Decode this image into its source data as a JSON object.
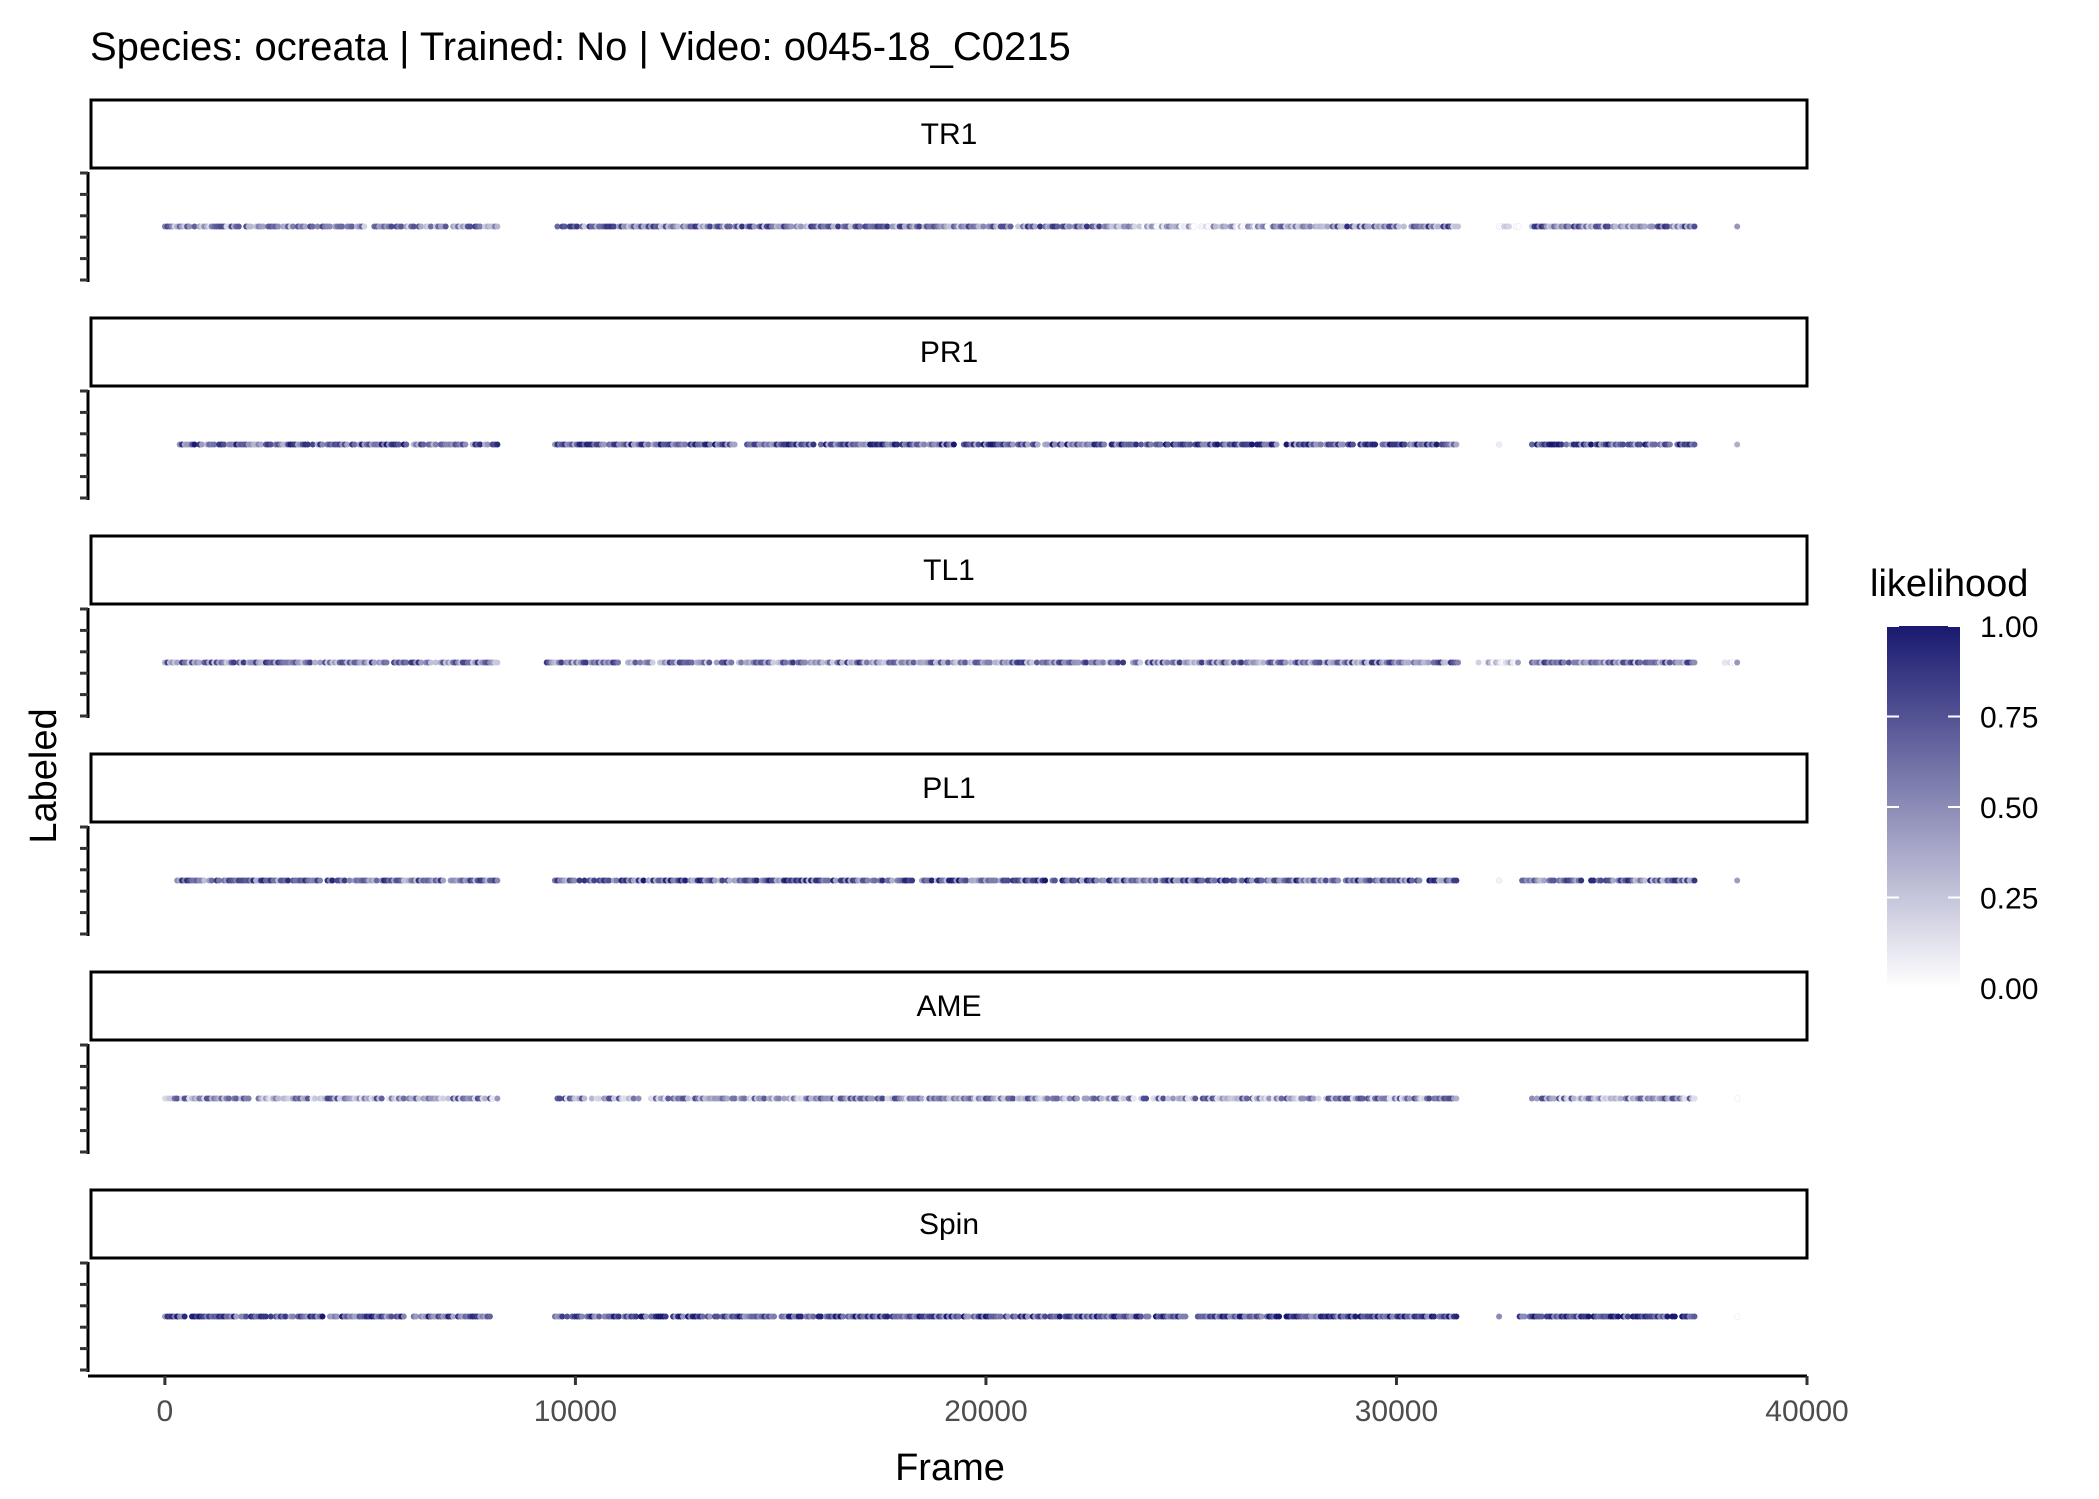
{
  "chart_data": {
    "type": "scatter",
    "title": "Species: ocreata | Trained: No | Video: o045-18_C0215",
    "xlabel": "Frame",
    "ylabel": "Labeled",
    "xlim": [
      -1800,
      40000
    ],
    "x_ticks": [
      0,
      10000,
      20000,
      30000,
      40000
    ],
    "facets": [
      "TR1",
      "PR1",
      "TL1",
      "PL1",
      "AME",
      "Spin"
    ],
    "y_value": 1,
    "color_scale": {
      "name": "likelihood",
      "low_color": "#ffffff",
      "high_color": "#191970",
      "limits": [
        0,
        1
      ],
      "tick_values": [
        0,
        0.25,
        0.5,
        0.75,
        1
      ],
      "tick_labels": [
        "0.00",
        "0.25",
        "0.50",
        "0.75",
        "1.00"
      ]
    },
    "segments": {
      "TR1": [
        {
          "from": 0,
          "to": 8100,
          "likelihood": 0.5
        },
        {
          "from": 9500,
          "to": 23500,
          "likelihood": 0.55
        },
        {
          "from": 23500,
          "to": 27000,
          "likelihood": 0.25
        },
        {
          "from": 27000,
          "to": 31500,
          "likelihood": 0.55
        },
        {
          "from": 32500,
          "to": 33000,
          "likelihood": 0.1
        },
        {
          "from": 33300,
          "to": 37300,
          "likelihood": 0.55
        },
        {
          "from": 38300,
          "to": 38300,
          "likelihood": 0.2
        }
      ],
      "PR1": [
        {
          "from": 300,
          "to": 8100,
          "likelihood": 0.65
        },
        {
          "from": 9500,
          "to": 31500,
          "likelihood": 0.7
        },
        {
          "from": 32500,
          "to": 32500,
          "likelihood": 0.2
        },
        {
          "from": 33300,
          "to": 37300,
          "likelihood": 0.7
        },
        {
          "from": 38300,
          "to": 38300,
          "likelihood": 0.3
        }
      ],
      "TL1": [
        {
          "from": 0,
          "to": 8100,
          "likelihood": 0.55
        },
        {
          "from": 9300,
          "to": 31500,
          "likelihood": 0.55
        },
        {
          "from": 32000,
          "to": 33000,
          "likelihood": 0.15
        },
        {
          "from": 33300,
          "to": 37300,
          "likelihood": 0.55
        },
        {
          "from": 38000,
          "to": 38300,
          "likelihood": 0.15
        }
      ],
      "PL1": [
        {
          "from": 300,
          "to": 8100,
          "likelihood": 0.6
        },
        {
          "from": 9500,
          "to": 31500,
          "likelihood": 0.65
        },
        {
          "from": 32500,
          "to": 32500,
          "likelihood": 0.2
        },
        {
          "from": 33000,
          "to": 37300,
          "likelihood": 0.6
        },
        {
          "from": 38300,
          "to": 38300,
          "likelihood": 0.5
        }
      ],
      "AME": [
        {
          "from": 0,
          "to": 8100,
          "likelihood": 0.45
        },
        {
          "from": 9500,
          "to": 31500,
          "likelihood": 0.45
        },
        {
          "from": 33300,
          "to": 37300,
          "likelihood": 0.45
        },
        {
          "from": 38300,
          "to": 38300,
          "likelihood": 0.2
        }
      ],
      "Spin": [
        {
          "from": 0,
          "to": 8000,
          "likelihood": 0.7
        },
        {
          "from": 9500,
          "to": 31500,
          "likelihood": 0.75
        },
        {
          "from": 32500,
          "to": 32500,
          "likelihood": 0.3
        },
        {
          "from": 33000,
          "to": 37300,
          "likelihood": 0.75
        },
        {
          "from": 38300,
          "to": 38300,
          "likelihood": 0.2
        }
      ]
    }
  }
}
